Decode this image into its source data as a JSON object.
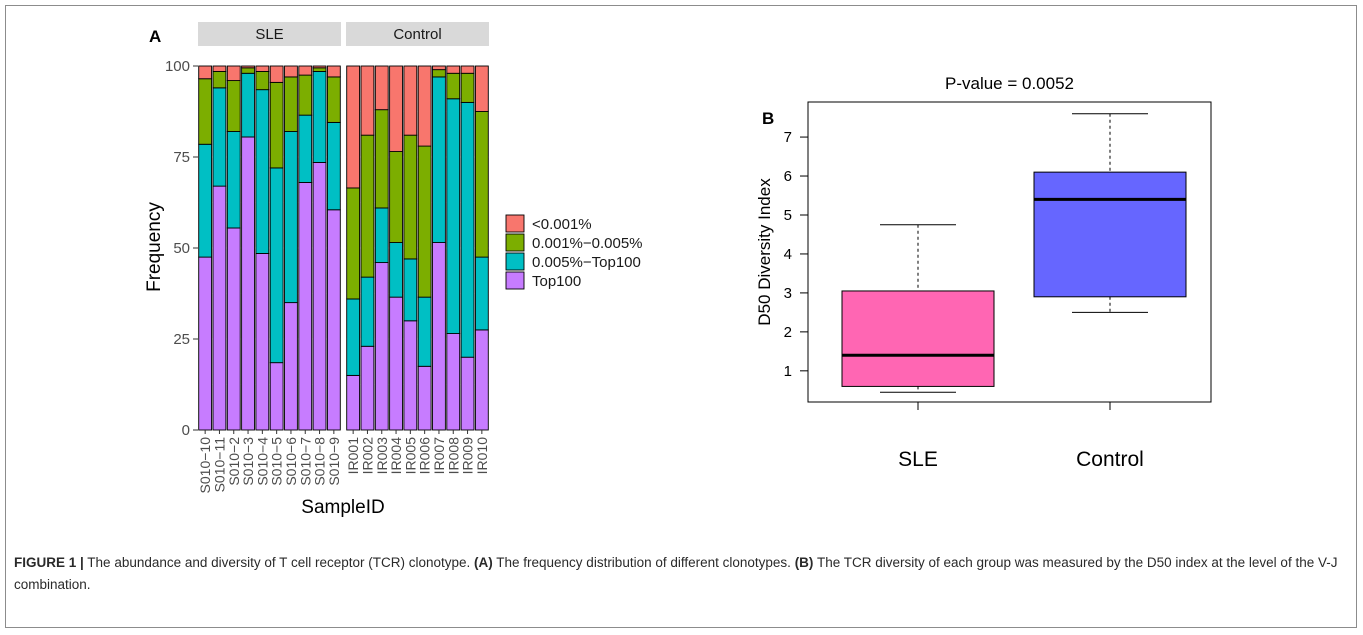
{
  "figure": {
    "caption_label": "FIGURE 1 |",
    "caption_text": " The abundance and diversity of T cell receptor (TCR) clonotype. ",
    "caption_a_label": "(A)",
    "caption_a_text": " The frequency distribution of different clonotypes. ",
    "caption_b_label": "(B)",
    "caption_b_text": " The TCR diversity of each group was measured by the D50 index at the level of the V-J combination."
  },
  "colors": {
    "lt0001": "#F8766D",
    "r0001_0005": "#7CAE00",
    "r0005_top100": "#00BFC4",
    "top100": "#C77CFF",
    "sle_box": "#FF66B3",
    "control_box": "#6666FF",
    "strip": "#D9D9D9"
  },
  "chart_data": [
    {
      "type": "bar",
      "stacked": true,
      "panel_label": "A",
      "ylabel": "Frequency",
      "xlabel": "SampleID",
      "ylim": [
        0,
        100
      ],
      "yticks": [
        "0",
        "25",
        "50",
        "75",
        "100"
      ],
      "facets": [
        "SLE",
        "Control"
      ],
      "legend": [
        "<0.001%",
        "0.001%−0.005%",
        "0.005%−Top100",
        "Top100"
      ],
      "legend_position": "right",
      "groups": [
        {
          "facet": "SLE",
          "categories": [
            "S010−10",
            "S010−11",
            "S010−2",
            "S010−3",
            "S010−4",
            "S010−5",
            "S010−6",
            "S010−7",
            "S010−8",
            "S010−9"
          ],
          "series": [
            {
              "name": "Top100",
              "values": [
                47.5,
                67,
                55.5,
                80.5,
                48.5,
                18.5,
                35,
                68,
                73.5,
                60.5
              ]
            },
            {
              "name": "0.005%−Top100",
              "values": [
                31,
                27,
                26.5,
                17.5,
                45,
                53.5,
                47,
                18.5,
                25,
                24
              ]
            },
            {
              "name": "0.001%−0.005%",
              "values": [
                18,
                4.5,
                14,
                1.5,
                5,
                23.5,
                15,
                11,
                1,
                12.5
              ]
            },
            {
              "name": "<0.001%",
              "values": [
                3.5,
                1.5,
                4,
                0.5,
                1.5,
                4.5,
                3,
                2.5,
                0.5,
                3
              ]
            }
          ]
        },
        {
          "facet": "Control",
          "categories": [
            "IR001",
            "IR002",
            "IR003",
            "IR004",
            "IR005",
            "IR006",
            "IR007",
            "IR008",
            "IR009",
            "IR010"
          ],
          "series": [
            {
              "name": "Top100",
              "values": [
                15,
                23,
                46,
                36.5,
                30,
                17.5,
                51.5,
                26.5,
                20,
                27.5
              ]
            },
            {
              "name": "0.005%−Top100",
              "values": [
                21,
                19,
                15,
                15,
                17,
                19,
                45.5,
                64.5,
                70,
                20
              ]
            },
            {
              "name": "0.001%−0.005%",
              "values": [
                30.5,
                39,
                27,
                25,
                34,
                41.5,
                2,
                7,
                8,
                40
              ]
            },
            {
              "name": "<0.001%",
              "values": [
                33.5,
                19,
                12,
                23.5,
                19,
                22,
                1,
                2,
                2,
                12.5
              ]
            }
          ]
        }
      ]
    },
    {
      "type": "box",
      "panel_label": "B",
      "title": "P-value = 0.0052",
      "ylabel": "D50  Diversity  Index",
      "ylim": [
        0.2,
        7.9
      ],
      "yticks": [
        "1",
        "2",
        "3",
        "4",
        "5",
        "6",
        "7"
      ],
      "categories": [
        "SLE",
        "Control"
      ],
      "boxes": [
        {
          "name": "SLE",
          "whisker_low": 0.45,
          "q1": 0.6,
          "median": 1.4,
          "q3": 3.05,
          "whisker_high": 4.75
        },
        {
          "name": "Control",
          "whisker_low": 2.5,
          "q1": 2.9,
          "median": 5.4,
          "q3": 6.1,
          "whisker_high": 7.6
        }
      ]
    }
  ]
}
